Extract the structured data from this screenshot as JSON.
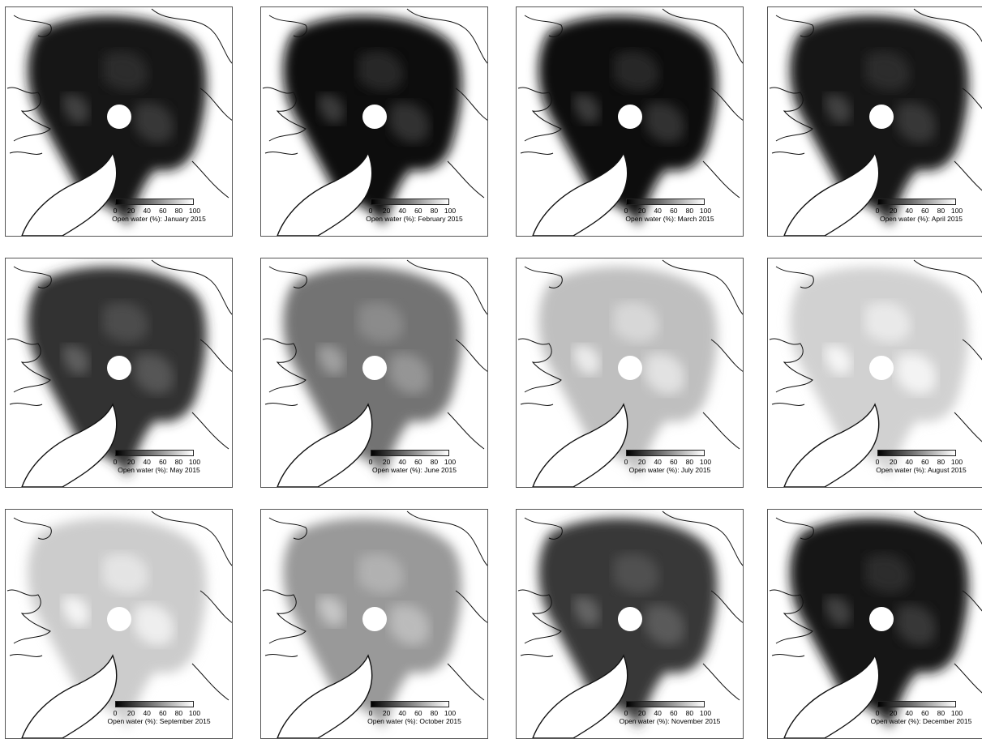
{
  "legend": {
    "ticks": [
      "0",
      "20",
      "40",
      "60",
      "80",
      "100"
    ],
    "prefix": "Open water (%): "
  },
  "panels": [
    {
      "caption": "Open water (%): January 2015",
      "open_water_level": 0.08
    },
    {
      "caption": "Open water (%): February 2015",
      "open_water_level": 0.06
    },
    {
      "caption": "Open water (%): March 2015",
      "open_water_level": 0.06
    },
    {
      "caption": "Open water (%): April 2015",
      "open_water_level": 0.08
    },
    {
      "caption": "Open water (%): May 2015",
      "open_water_level": 0.2
    },
    {
      "caption": "Open water (%): June 2015",
      "open_water_level": 0.45
    },
    {
      "caption": "Open water (%): July 2015",
      "open_water_level": 0.75
    },
    {
      "caption": "Open water (%): August 2015",
      "open_water_level": 0.82
    },
    {
      "caption": "Open water (%): September 2015",
      "open_water_level": 0.8
    },
    {
      "caption": "Open water (%): October 2015",
      "open_water_level": 0.6
    },
    {
      "caption": "Open water (%): November 2015",
      "open_water_level": 0.22
    },
    {
      "caption": "Open water (%): December 2015",
      "open_water_level": 0.08
    }
  ],
  "colors": {
    "ice_dark": "#000000",
    "open_water": "#ffffff",
    "coastline": "#111111",
    "pole_hole": "#ffffff"
  }
}
